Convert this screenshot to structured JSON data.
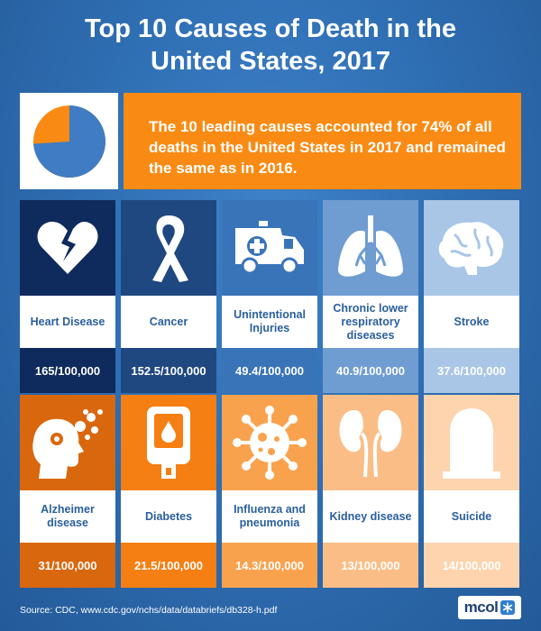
{
  "title": {
    "line1": "Top 10 Causes of Death in the",
    "line2": "United States, 2017"
  },
  "summary": {
    "text": "The 10 leading causes accounted for 74% of all deaths in the United States in 2017 and remained the same as in 2016.",
    "share_percent": 74
  },
  "colors": {
    "background": "#2f6fb4",
    "orange": "#f98b14",
    "row1": [
      "#0f2a5c",
      "#1f4880",
      "#3a74b8",
      "#6f9dd2",
      "#a9c6e6"
    ],
    "row2": [
      "#d9670e",
      "#f57f12",
      "#f9a24e",
      "#fbbd86",
      "#fdd4ae"
    ]
  },
  "causes": [
    {
      "name": "Heart Disease",
      "rate": "165/100,000",
      "icon": "broken-heart-icon"
    },
    {
      "name": "Cancer",
      "rate": "152.5/100,000",
      "icon": "awareness-ribbon-icon"
    },
    {
      "name": "Unintentional Injuries",
      "rate": "49.4/100,000",
      "icon": "ambulance-icon"
    },
    {
      "name": "Chronic lower respiratory diseases",
      "rate": "40.9/100,000",
      "icon": "lungs-icon"
    },
    {
      "name": "Stroke",
      "rate": "37.6/100,000",
      "icon": "brain-icon"
    },
    {
      "name": "Alzheimer disease",
      "rate": "31/100,000",
      "icon": "head-bubbles-icon"
    },
    {
      "name": "Diabetes",
      "rate": "21.5/100,000",
      "icon": "glucose-meter-icon"
    },
    {
      "name": "Influenza and pneumonia",
      "rate": "14.3/100,000",
      "icon": "virus-icon"
    },
    {
      "name": "Kidney disease",
      "rate": "13/100,000",
      "icon": "kidneys-icon"
    },
    {
      "name": "Suicide",
      "rate": "14/100,000",
      "icon": "gravestone-icon"
    }
  ],
  "source": "Source:  CDC, www.cdc.gov/nchs/data/databriefs/db328-h.pdf",
  "logo": "mcol"
}
